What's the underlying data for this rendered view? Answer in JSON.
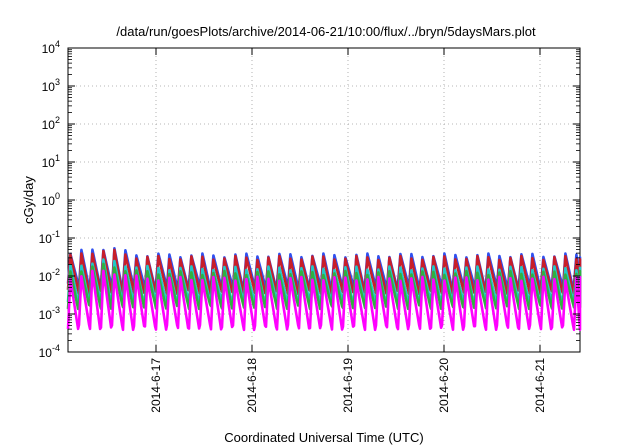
{
  "chart_data": {
    "type": "line",
    "title": "/data/run/goesPlots/archive/2014-06-21/10:00/flux/../bryn/5daysMars.plot",
    "xlabel": "Coordinated Universal Time (UTC)",
    "ylabel": "cGy/day",
    "y_scale": "log",
    "ylim": [
      0.0001,
      10000
    ],
    "y_ticks": [
      {
        "base": "10",
        "exp": "-4",
        "value": 0.0001
      },
      {
        "base": "10",
        "exp": "-3",
        "value": 0.001
      },
      {
        "base": "10",
        "exp": "-2",
        "value": 0.01
      },
      {
        "base": "10",
        "exp": "-1",
        "value": 0.1
      },
      {
        "base": "10",
        "exp": "0",
        "value": 1
      },
      {
        "base": "10",
        "exp": "1",
        "value": 10
      },
      {
        "base": "10",
        "exp": "2",
        "value": 100
      },
      {
        "base": "10",
        "exp": "3",
        "value": 1000
      },
      {
        "base": "10",
        "exp": "4",
        "value": 10000
      }
    ],
    "xlim": [
      "2014-06-16T02:00",
      "2014-06-21T10:00"
    ],
    "x_ticks": [
      {
        "label": "2014-6-17",
        "value": "2014-06-17T00:00"
      },
      {
        "label": "2014-6-18",
        "value": "2014-06-18T00:00"
      },
      {
        "label": "2014-6-19",
        "value": "2014-06-19T00:00"
      },
      {
        "label": "2014-6-20",
        "value": "2014-06-20T00:00"
      },
      {
        "label": "2014-6-21",
        "value": "2014-06-21T00:00"
      }
    ],
    "grid": true,
    "cycle_hours": 2.75,
    "series": [
      {
        "color": "#3050f0",
        "peak": 0.035,
        "trough": 0.0055
      },
      {
        "color": "#c81e2a",
        "peak": 0.03,
        "trough": 0.004
      },
      {
        "color": "#20c8c8",
        "peak": 0.016,
        "trough": 0.0022
      },
      {
        "color": "#30b040",
        "peak": 0.012,
        "trough": 0.0016
      },
      {
        "color": "#ff00ff",
        "peak": 0.0085,
        "trough": 0.00045
      }
    ]
  }
}
